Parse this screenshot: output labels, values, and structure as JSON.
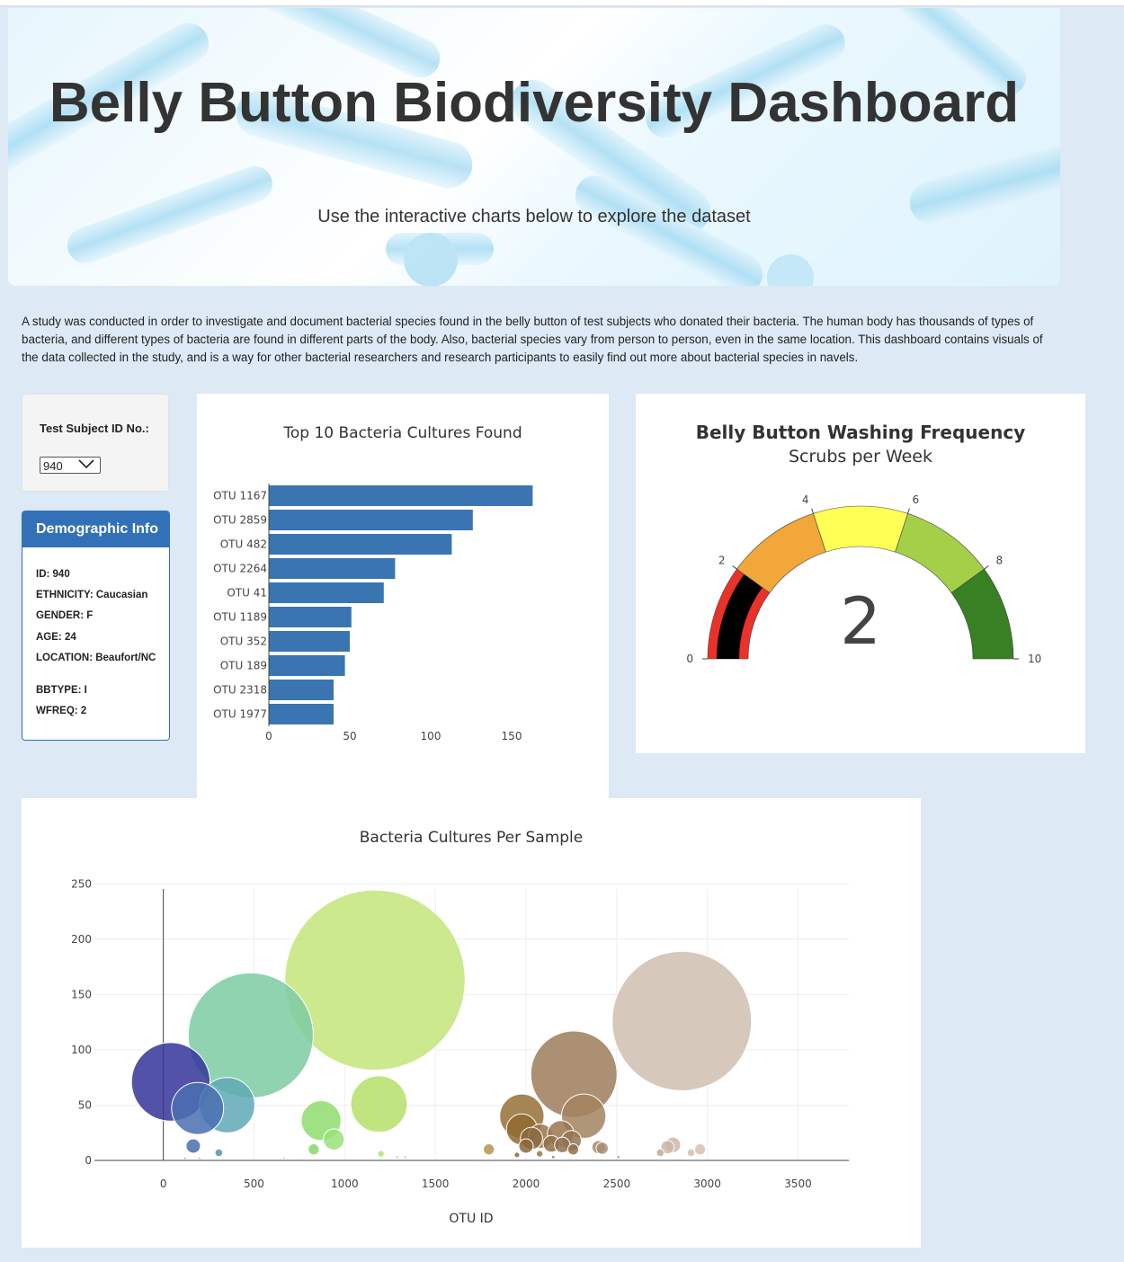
{
  "header": {
    "title": "Belly Button Biodiversity Dashboard",
    "subtitle": "Use the interactive charts below to explore the dataset"
  },
  "intro": "A study was conducted in order to investigate and document bacterial species found in the belly button of test subjects who donated their bacteria. The human body has thousands of types of bacteria, and different types of bacteria are found in different parts of the body. Also, bacterial species vary from person to person, even in the same location. This dashboard contains visuals of the data collected in the study, and is a way for other bacterial researchers and research participants to easily find out more about bacterial species in navels.",
  "selector": {
    "label": "Test Subject ID No.:",
    "value": "940",
    "icon": "chevron-down-icon"
  },
  "demographic": {
    "title": "Demographic Info",
    "rows": [
      "ID: 940",
      "ETHNICITY: Caucasian",
      "GENDER: F",
      "AGE: 24",
      "LOCATION: Beaufort/NC",
      "BBTYPE: I",
      "WFREQ: 2"
    ]
  },
  "colors": {
    "bar": "#3a75b1",
    "panel_header": "#3271b8",
    "page_bg": "#dde9f5"
  },
  "chart_data": [
    {
      "type": "bar",
      "orientation": "horizontal",
      "title": "Top 10 Bacteria Cultures Found",
      "categories": [
        "OTU 1167",
        "OTU 2859",
        "OTU 482",
        "OTU 2264",
        "OTU 41",
        "OTU 1189",
        "OTU 352",
        "OTU 189",
        "OTU 2318",
        "OTU 1977"
      ],
      "values": [
        163,
        126,
        113,
        78,
        71,
        51,
        50,
        47,
        40,
        40
      ],
      "xticks": [
        "0",
        "50",
        "100",
        "150"
      ],
      "xlim": [
        0,
        165
      ]
    },
    {
      "type": "gauge",
      "title": "Belly Button Washing Frequency",
      "subtitle": "Scrubs per Week",
      "value": 2,
      "value_label": "2",
      "range": [
        0,
        10
      ],
      "ticks": [
        "0",
        "2",
        "4",
        "6",
        "8",
        "10"
      ],
      "bands": [
        {
          "from": 0,
          "to": 2,
          "color": "#e8322a"
        },
        {
          "from": 2,
          "to": 4,
          "color": "#f2a73b"
        },
        {
          "from": 4,
          "to": 6,
          "color": "#ffff55"
        },
        {
          "from": 6,
          "to": 8,
          "color": "#a4cf48"
        },
        {
          "from": 8,
          "to": 10,
          "color": "#378023"
        }
      ],
      "bar_color": "#000000"
    },
    {
      "type": "scatter",
      "title": "Bacteria Cultures Per Sample",
      "xlabel": "OTU ID",
      "xlim": [
        -380,
        3780
      ],
      "ylim": [
        0,
        260
      ],
      "xticks": [
        "0",
        "500",
        "1000",
        "1500",
        "2000",
        "2500",
        "3000",
        "3500"
      ],
      "yticks": [
        "0",
        "50",
        "100",
        "150",
        "200",
        "250"
      ],
      "points": [
        {
          "x": 1167,
          "y": 163,
          "color": "#c3e57a"
        },
        {
          "x": 2859,
          "y": 126,
          "color": "#cfc0b0"
        },
        {
          "x": 482,
          "y": 113,
          "color": "#7ccba3"
        },
        {
          "x": 2264,
          "y": 78,
          "color": "#9d7c5a"
        },
        {
          "x": 41,
          "y": 71,
          "color": "#34349a"
        },
        {
          "x": 1189,
          "y": 51,
          "color": "#b5e06a"
        },
        {
          "x": 352,
          "y": 50,
          "color": "#5fa9b5"
        },
        {
          "x": 189,
          "y": 47,
          "color": "#4a6fb0"
        },
        {
          "x": 2318,
          "y": 40,
          "color": "#a2835e"
        },
        {
          "x": 1977,
          "y": 40,
          "color": "#957035"
        },
        {
          "x": 870,
          "y": 36,
          "color": "#8fdc6e"
        },
        {
          "x": 1977,
          "y": 28,
          "color": "#8f6a30"
        },
        {
          "x": 2080,
          "y": 22,
          "color": "#9a7448"
        },
        {
          "x": 2191,
          "y": 24,
          "color": "#9a7650"
        },
        {
          "x": 940,
          "y": 19,
          "color": "#99e27a"
        },
        {
          "x": 2030,
          "y": 20,
          "color": "#8c6a40"
        },
        {
          "x": 2250,
          "y": 18,
          "color": "#947454"
        },
        {
          "x": 2140,
          "y": 15,
          "color": "#917046"
        },
        {
          "x": 2200,
          "y": 14,
          "color": "#937250"
        },
        {
          "x": 2000,
          "y": 13,
          "color": "#8a6838"
        },
        {
          "x": 2260,
          "y": 10,
          "color": "#8f6f4e"
        },
        {
          "x": 165,
          "y": 13,
          "color": "#4a6fb0"
        },
        {
          "x": 2400,
          "y": 12,
          "color": "#a58a70"
        },
        {
          "x": 2420,
          "y": 11,
          "color": "#a88d72"
        },
        {
          "x": 2810,
          "y": 14,
          "color": "#cbb9a8"
        },
        {
          "x": 2780,
          "y": 12,
          "color": "#c9b7a6"
        },
        {
          "x": 2960,
          "y": 10,
          "color": "#d2c3b4"
        },
        {
          "x": 1795,
          "y": 10,
          "color": "#b5954b"
        },
        {
          "x": 829,
          "y": 10,
          "color": "#86d86a"
        },
        {
          "x": 2740,
          "y": 7,
          "color": "#c0ac98"
        },
        {
          "x": 2910,
          "y": 7,
          "color": "#d0c0b0"
        },
        {
          "x": 306,
          "y": 7,
          "color": "#4f97ad"
        },
        {
          "x": 1200,
          "y": 6,
          "color": "#b8e070"
        },
        {
          "x": 1950,
          "y": 5,
          "color": "#8a6a3a"
        },
        {
          "x": 2075,
          "y": 6,
          "color": "#9a784c"
        },
        {
          "x": 1290,
          "y": 3,
          "color": "#bde27e"
        },
        {
          "x": 1335,
          "y": 3,
          "color": "#c2e483"
        },
        {
          "x": 2510,
          "y": 3,
          "color": "#b19a82"
        },
        {
          "x": 120,
          "y": 2,
          "color": "#4a6fb0"
        },
        {
          "x": 200,
          "y": 2,
          "color": "#4a6fb0"
        },
        {
          "x": 665,
          "y": 2,
          "color": "#7acf99"
        },
        {
          "x": 2150,
          "y": 3,
          "color": "#94744a"
        }
      ]
    }
  ]
}
